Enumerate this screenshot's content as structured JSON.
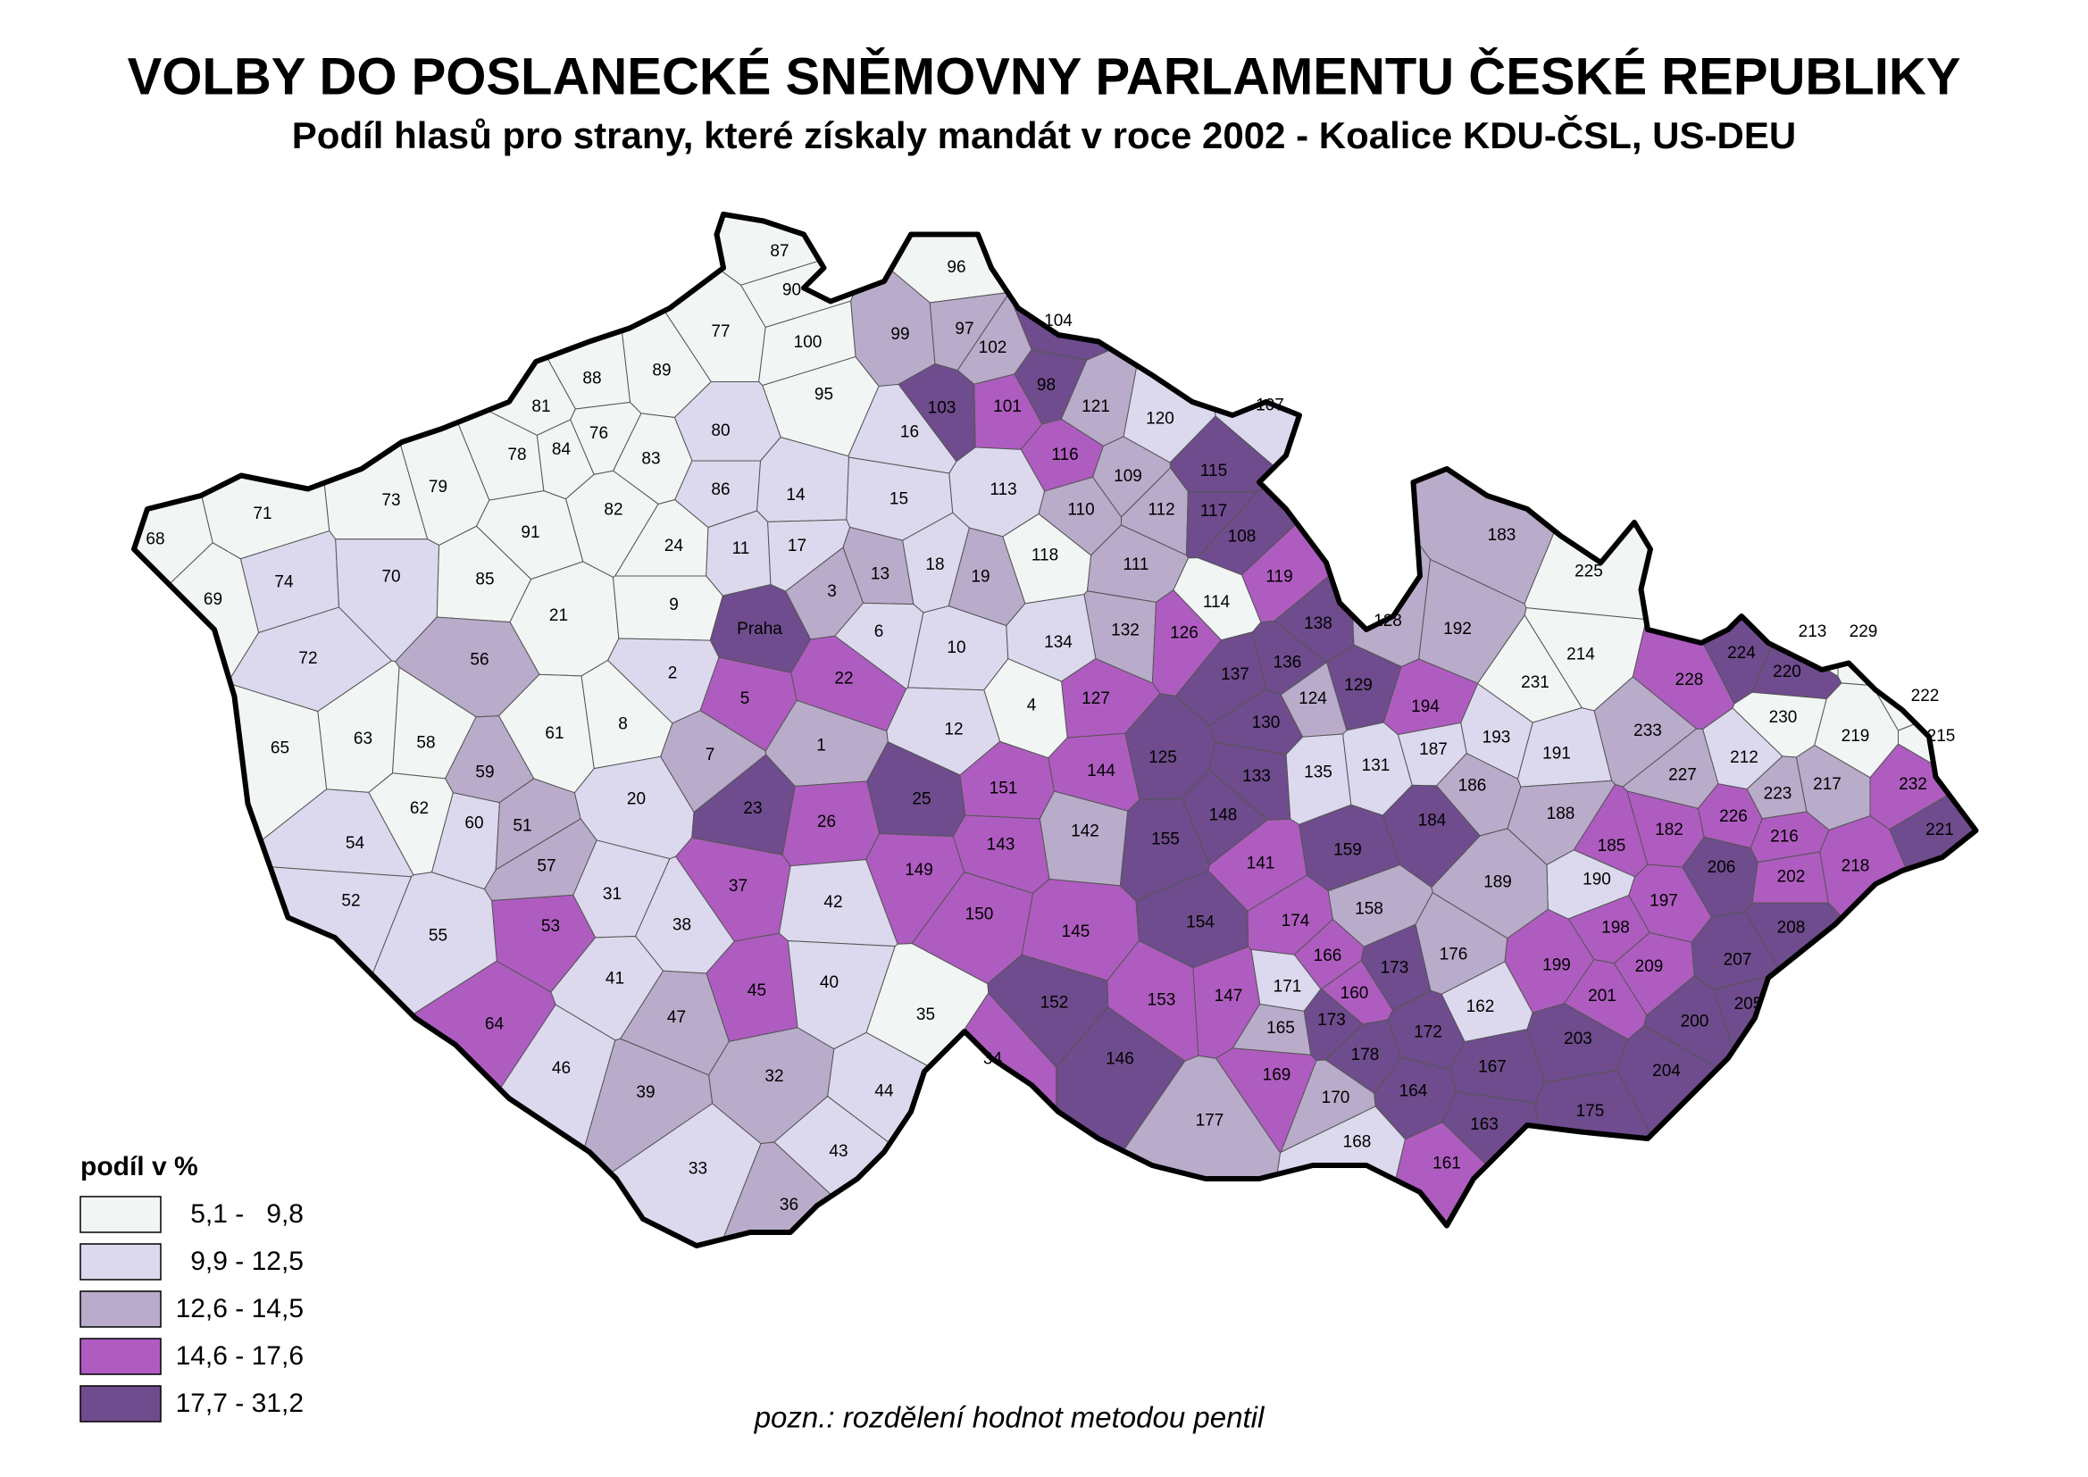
{
  "title": "VOLBY DO POSLANECKÉ SNĚMOVNY PARLAMENTU ČESKÉ REPUBLIKY",
  "subtitle": "Podíl hlasů pro strany, které získaly mandát v roce 2002 - Koalice KDU-ČSL, US-DEU",
  "legend": {
    "title": "podíl v %",
    "classes": [
      {
        "label": "5,1 -   9,8",
        "color": "#f1f6f4"
      },
      {
        "label": "9,9 - 12,5",
        "color": "#dcd9ee"
      },
      {
        "label": "12,6 - 14,5",
        "color": "#b9abca"
      },
      {
        "label": "14,6 - 17,6",
        "color": "#af5cc0"
      },
      {
        "label": "17,7 - 31,2",
        "color": "#6f4c8d"
      }
    ]
  },
  "note": "pozn.: rozdělení hodnot metodou pentil",
  "districts": [
    {
      "label": "87",
      "class": 0
    },
    {
      "label": "90",
      "class": 0
    },
    {
      "label": "96",
      "class": 0
    },
    {
      "label": "104",
      "class": 4
    },
    {
      "label": "77",
      "class": 0
    },
    {
      "label": "99",
      "class": 2
    },
    {
      "label": "97",
      "class": 2
    },
    {
      "label": "100",
      "class": 0
    },
    {
      "label": "102",
      "class": 2
    },
    {
      "label": "89",
      "class": 0
    },
    {
      "label": "88",
      "class": 0
    },
    {
      "label": "95",
      "class": 0
    },
    {
      "label": "98",
      "class": 4
    },
    {
      "label": "101",
      "class": 3
    },
    {
      "label": "103",
      "class": 4
    },
    {
      "label": "121",
      "class": 2
    },
    {
      "label": "107",
      "class": 1
    },
    {
      "label": "120",
      "class": 1
    },
    {
      "label": "81",
      "class": 0
    },
    {
      "label": "80",
      "class": 1
    },
    {
      "label": "76",
      "class": 0
    },
    {
      "label": "16",
      "class": 1
    },
    {
      "label": "78",
      "class": 0
    },
    {
      "label": "84",
      "class": 0
    },
    {
      "label": "83",
      "class": 0
    },
    {
      "label": "116",
      "class": 3
    },
    {
      "label": "115",
      "class": 4
    },
    {
      "label": "109",
      "class": 2
    },
    {
      "label": "79",
      "class": 0
    },
    {
      "label": "73",
      "class": 0
    },
    {
      "label": "71",
      "class": 0
    },
    {
      "label": "86",
      "class": 1
    },
    {
      "label": "14",
      "class": 1
    },
    {
      "label": "15",
      "class": 1
    },
    {
      "label": "113",
      "class": 1
    },
    {
      "label": "110",
      "class": 2
    },
    {
      "label": "112",
      "class": 2
    },
    {
      "label": "117",
      "class": 4
    },
    {
      "label": "82",
      "class": 0
    },
    {
      "label": "91",
      "class": 0
    },
    {
      "label": "68",
      "class": 0
    },
    {
      "label": "183",
      "class": 2
    },
    {
      "label": "108",
      "class": 4
    },
    {
      "label": "24",
      "class": 0
    },
    {
      "label": "11",
      "class": 1
    },
    {
      "label": "17",
      "class": 1
    },
    {
      "label": "18",
      "class": 1
    },
    {
      "label": "118",
      "class": 0
    },
    {
      "label": "111",
      "class": 2
    },
    {
      "label": "225",
      "class": 0
    },
    {
      "label": "74",
      "class": 1
    },
    {
      "label": "70",
      "class": 1
    },
    {
      "label": "85",
      "class": 0
    },
    {
      "label": "13",
      "class": 2
    },
    {
      "label": "19",
      "class": 2
    },
    {
      "label": "119",
      "class": 3
    },
    {
      "label": "69",
      "class": 0
    },
    {
      "label": "3",
      "class": 2
    },
    {
      "label": "114",
      "class": 0
    },
    {
      "label": "138",
      "class": 4
    },
    {
      "label": "128",
      "class": 2
    },
    {
      "label": "192",
      "class": 2
    },
    {
      "label": "21",
      "class": 0
    },
    {
      "label": "9",
      "class": 0
    },
    {
      "label": "Praha",
      "class": 4
    },
    {
      "label": "6",
      "class": 1
    },
    {
      "label": "132",
      "class": 2
    },
    {
      "label": "126",
      "class": 3
    },
    {
      "label": "10",
      "class": 1
    },
    {
      "label": "134",
      "class": 1
    },
    {
      "label": "213",
      "class": 0
    },
    {
      "label": "229",
      "class": 0
    },
    {
      "label": "224",
      "class": 4
    },
    {
      "label": "214",
      "class": 0
    },
    {
      "label": "72",
      "class": 1
    },
    {
      "label": "56",
      "class": 2
    },
    {
      "label": "137",
      "class": 4
    },
    {
      "label": "136",
      "class": 4
    },
    {
      "label": "2",
      "class": 1
    },
    {
      "label": "22",
      "class": 3
    },
    {
      "label": "5",
      "class": 3
    },
    {
      "label": "127",
      "class": 3
    },
    {
      "label": "129",
      "class": 4
    },
    {
      "label": "228",
      "class": 3
    },
    {
      "label": "220",
      "class": 4
    },
    {
      "label": "231",
      "class": 0
    },
    {
      "label": "194",
      "class": 3
    },
    {
      "label": "124",
      "class": 2
    },
    {
      "label": "4",
      "class": 0
    },
    {
      "label": "222",
      "class": 0
    },
    {
      "label": "230",
      "class": 0
    },
    {
      "label": "65",
      "class": 0
    },
    {
      "label": "63",
      "class": 0
    },
    {
      "label": "58",
      "class": 0
    },
    {
      "label": "61",
      "class": 0
    },
    {
      "label": "8",
      "class": 0
    },
    {
      "label": "12",
      "class": 1
    },
    {
      "label": "130",
      "class": 4
    },
    {
      "label": "193",
      "class": 1
    },
    {
      "label": "233",
      "class": 2
    },
    {
      "label": "219",
      "class": 0
    },
    {
      "label": "215",
      "class": 0
    },
    {
      "label": "187",
      "class": 1
    },
    {
      "label": "191",
      "class": 1
    },
    {
      "label": "212",
      "class": 1
    },
    {
      "label": "1",
      "class": 2
    },
    {
      "label": "7",
      "class": 2
    },
    {
      "label": "59",
      "class": 2
    },
    {
      "label": "135",
      "class": 1
    },
    {
      "label": "131",
      "class": 1
    },
    {
      "label": "144",
      "class": 3
    },
    {
      "label": "125",
      "class": 4
    },
    {
      "label": "133",
      "class": 4
    },
    {
      "label": "227",
      "class": 2
    },
    {
      "label": "186",
      "class": 2
    },
    {
      "label": "217",
      "class": 2
    },
    {
      "label": "232",
      "class": 3
    },
    {
      "label": "62",
      "class": 0
    },
    {
      "label": "60",
      "class": 1
    },
    {
      "label": "51",
      "class": 2
    },
    {
      "label": "20",
      "class": 1
    },
    {
      "label": "23",
      "class": 4
    },
    {
      "label": "26",
      "class": 3
    },
    {
      "label": "25",
      "class": 4
    },
    {
      "label": "151",
      "class": 3
    },
    {
      "label": "188",
      "class": 2
    },
    {
      "label": "223",
      "class": 2
    },
    {
      "label": "226",
      "class": 3
    },
    {
      "label": "216",
      "class": 3
    },
    {
      "label": "221",
      "class": 4
    },
    {
      "label": "142",
      "class": 2
    },
    {
      "label": "148",
      "class": 4
    },
    {
      "label": "155",
      "class": 4
    },
    {
      "label": "159",
      "class": 4
    },
    {
      "label": "184",
      "class": 4
    },
    {
      "label": "185",
      "class": 3
    },
    {
      "label": "182",
      "class": 3
    },
    {
      "label": "218",
      "class": 3
    },
    {
      "label": "143",
      "class": 3
    },
    {
      "label": "54",
      "class": 1
    },
    {
      "label": "57",
      "class": 2
    },
    {
      "label": "141",
      "class": 3
    },
    {
      "label": "202",
      "class": 3
    },
    {
      "label": "206",
      "class": 4
    },
    {
      "label": "149",
      "class": 3
    },
    {
      "label": "190",
      "class": 1
    },
    {
      "label": "189",
      "class": 2
    },
    {
      "label": "52",
      "class": 1
    },
    {
      "label": "31",
      "class": 1
    },
    {
      "label": "37",
      "class": 3
    },
    {
      "label": "42",
      "class": 1
    },
    {
      "label": "197",
      "class": 3
    },
    {
      "label": "198",
      "class": 3
    },
    {
      "label": "208",
      "class": 4
    },
    {
      "label": "150",
      "class": 3
    },
    {
      "label": "145",
      "class": 3
    },
    {
      "label": "154",
      "class": 4
    },
    {
      "label": "174",
      "class": 3
    },
    {
      "label": "158",
      "class": 2
    },
    {
      "label": "38",
      "class": 1
    },
    {
      "label": "53",
      "class": 3
    },
    {
      "label": "55",
      "class": 1
    },
    {
      "label": "176",
      "class": 2
    },
    {
      "label": "166",
      "class": 3
    },
    {
      "label": "173",
      "class": 4
    },
    {
      "label": "207",
      "class": 4
    },
    {
      "label": "199",
      "class": 3
    },
    {
      "label": "209",
      "class": 3
    },
    {
      "label": "41",
      "class": 1
    },
    {
      "label": "40",
      "class": 1
    },
    {
      "label": "171",
      "class": 1
    },
    {
      "label": "160",
      "class": 3
    },
    {
      "label": "153",
      "class": 3
    },
    {
      "label": "147",
      "class": 3
    },
    {
      "label": "45",
      "class": 3
    },
    {
      "label": "162",
      "class": 1
    },
    {
      "label": "201",
      "class": 3
    },
    {
      "label": "205",
      "class": 4
    },
    {
      "label": "152",
      "class": 4
    },
    {
      "label": "35",
      "class": 0
    },
    {
      "label": "47",
      "class": 2
    },
    {
      "label": "173",
      "class": 4
    },
    {
      "label": "165",
      "class": 2
    },
    {
      "label": "172",
      "class": 4
    },
    {
      "label": "200",
      "class": 4
    },
    {
      "label": "64",
      "class": 3
    },
    {
      "label": "203",
      "class": 4
    },
    {
      "label": "178",
      "class": 4
    },
    {
      "label": "34",
      "class": 3
    },
    {
      "label": "146",
      "class": 4
    },
    {
      "label": "167",
      "class": 4
    },
    {
      "label": "46",
      "class": 1
    },
    {
      "label": "169",
      "class": 3
    },
    {
      "label": "204",
      "class": 4
    },
    {
      "label": "32",
      "class": 2
    },
    {
      "label": "39",
      "class": 2
    },
    {
      "label": "44",
      "class": 1
    },
    {
      "label": "170",
      "class": 2
    },
    {
      "label": "164",
      "class": 4
    },
    {
      "label": "175",
      "class": 4
    },
    {
      "label": "177",
      "class": 2
    },
    {
      "label": "163",
      "class": 4
    },
    {
      "label": "168",
      "class": 1
    },
    {
      "label": "43",
      "class": 1
    },
    {
      "label": "161",
      "class": 3
    },
    {
      "label": "33",
      "class": 1
    },
    {
      "label": "36",
      "class": 2
    }
  ]
}
